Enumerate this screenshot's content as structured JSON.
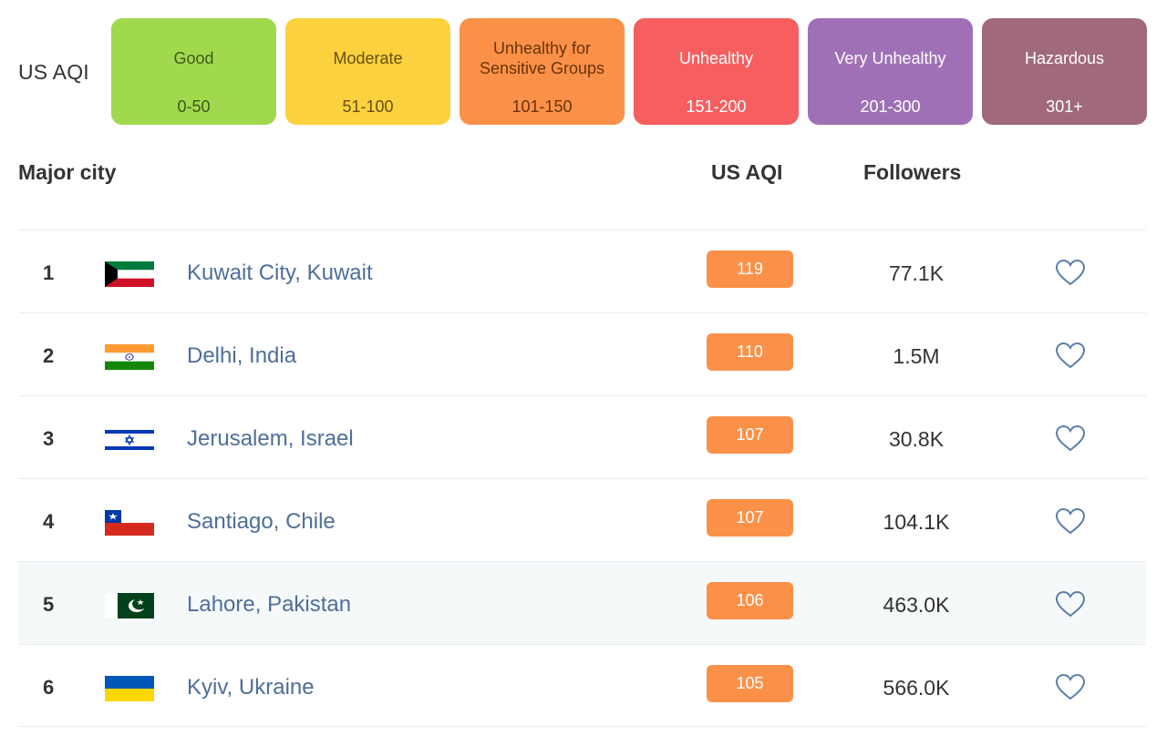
{
  "legend": {
    "title": "US AQI",
    "levels": [
      {
        "label": "Good",
        "range": "0-50",
        "color": "#a0d94e"
      },
      {
        "label": "Moderate",
        "range": "51-100",
        "color": "#fcd13e"
      },
      {
        "label": "Unhealthy for Sensitive Groups",
        "range": "101-150",
        "color": "#fb9149"
      },
      {
        "label": "Unhealthy",
        "range": "151-200",
        "color": "#f65e5f"
      },
      {
        "label": "Very Unhealthy",
        "range": "201-300",
        "color": "#a070b6"
      },
      {
        "label": "Hazardous",
        "range": "301+",
        "color": "#a06a7b"
      }
    ]
  },
  "table": {
    "headers": {
      "city": "Major city",
      "aqi": "US AQI",
      "followers": "Followers"
    },
    "rows": [
      {
        "rank": "1",
        "city": "Kuwait City, Kuwait",
        "flag": "kuwait-flag-icon",
        "aqi": "119",
        "followers": "77.1K"
      },
      {
        "rank": "2",
        "city": "Delhi, India",
        "flag": "india-flag-icon",
        "aqi": "110",
        "followers": "1.5M"
      },
      {
        "rank": "3",
        "city": "Jerusalem, Israel",
        "flag": "israel-flag-icon",
        "aqi": "107",
        "followers": "30.8K"
      },
      {
        "rank": "4",
        "city": "Santiago, Chile",
        "flag": "chile-flag-icon",
        "aqi": "107",
        "followers": "104.1K"
      },
      {
        "rank": "5",
        "city": "Lahore, Pakistan",
        "flag": "pakistan-flag-icon",
        "aqi": "106",
        "followers": "463.0K"
      },
      {
        "rank": "6",
        "city": "Kyiv, Ukraine",
        "flag": "ukraine-flag-icon",
        "aqi": "105",
        "followers": "566.0K"
      }
    ],
    "badge_color": "#fb9149",
    "link_color": "#4e6e99",
    "favorite_icon": "heart-icon"
  }
}
